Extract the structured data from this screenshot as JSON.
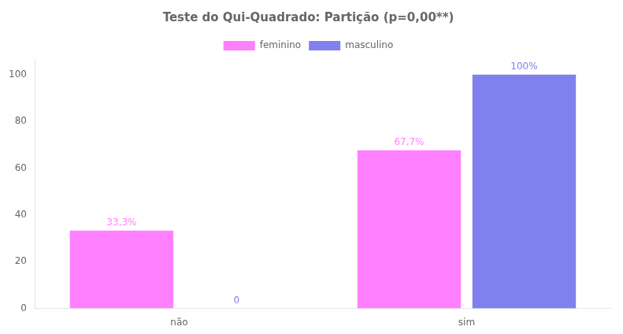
{
  "chart_data": {
    "type": "bar",
    "title": "Teste do Qui-Quadrado: Partição (p=0,00**)",
    "categories": [
      "não",
      "sim"
    ],
    "series": [
      {
        "name": "feminino",
        "color": "#FF80FF",
        "values": [
          33.3,
          67.7
        ],
        "value_labels": [
          "33,3%",
          "67,7%"
        ]
      },
      {
        "name": "masculino",
        "color": "#8080EE",
        "values": [
          0,
          100
        ],
        "value_labels": [
          "0",
          "100%"
        ]
      }
    ],
    "ylim": [
      0,
      107
    ],
    "yticks": [
      0,
      20,
      40,
      60,
      80,
      100
    ],
    "grid": false,
    "legend": "top",
    "data_labels": true
  }
}
